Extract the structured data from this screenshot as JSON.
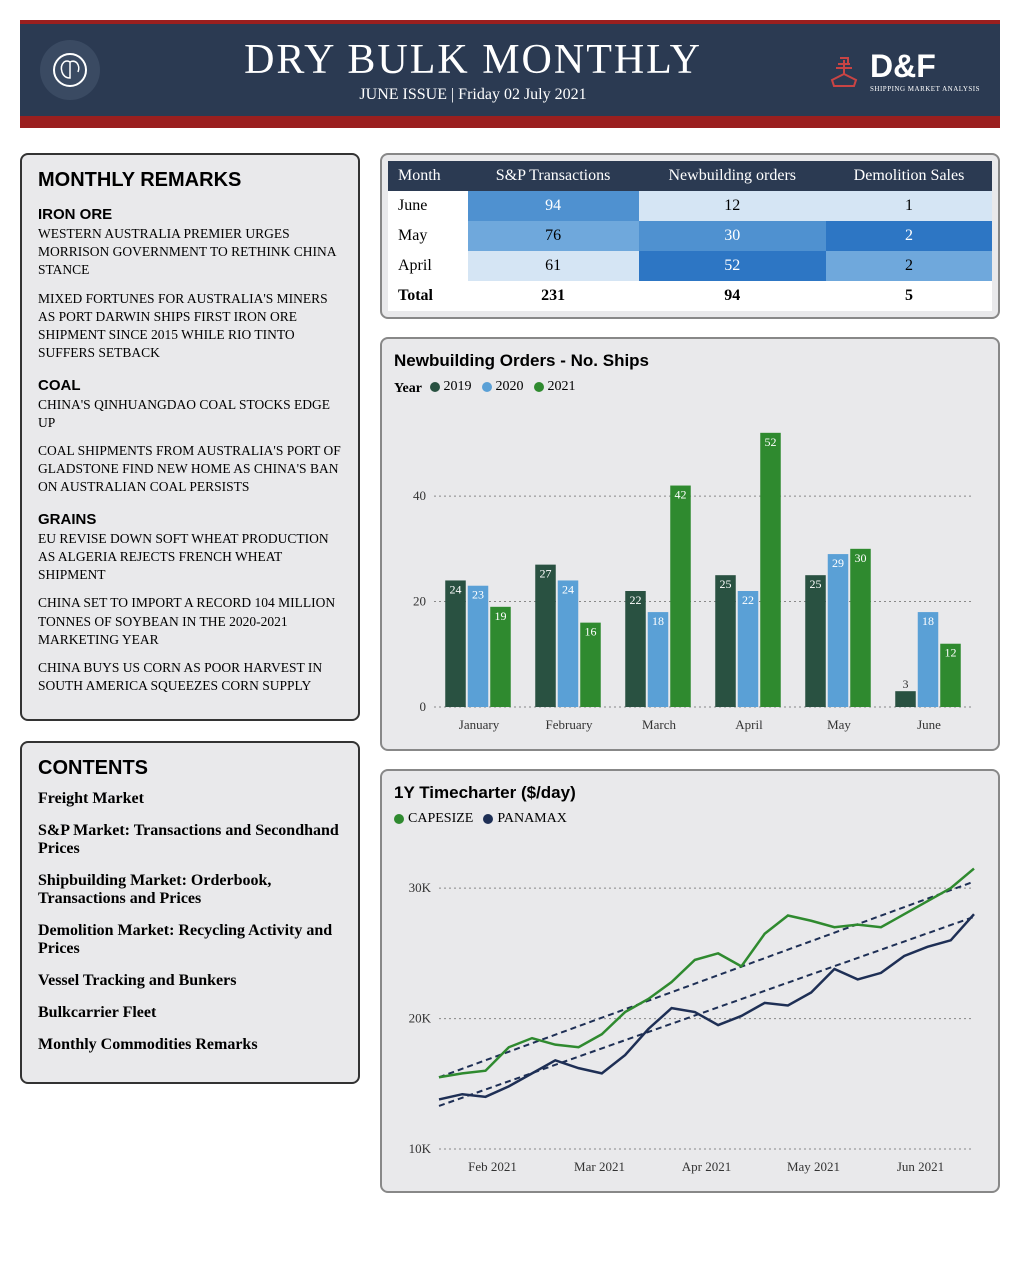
{
  "header": {
    "title": "DRY BULK MONTHLY",
    "subtitle": "JUNE ISSUE | Friday 02 July 2021",
    "logo_text": "D&F",
    "logo_sub": "SHIPPING MARKET ANALYSIS"
  },
  "remarks": {
    "title": "MONTHLY REMARKS",
    "sections": [
      {
        "head": "IRON ORE",
        "paras": [
          "Western Australia Premier urges Morrison government to rethink China stance",
          "Mixed fortunes for Australia's miners as Port Darwin ships first iron ore shipment since 2015 while Rio Tinto suffers setback"
        ]
      },
      {
        "head": "COAL",
        "paras": [
          "China's Qinhuangdao coal stocks edge up",
          "Coal shipments from Australia's Port of Gladstone find new home as China's ban on Australian coal persists"
        ]
      },
      {
        "head": "GRAINS",
        "paras": [
          "EU revise down soft wheat production as Algeria rejects French wheat shipment",
          "China set to import a record 104 million tonnes of soybean in the 2020-2021 marketing year",
          "China buys US corn as poor harvest in South America squeezes corn supply"
        ]
      }
    ]
  },
  "contents": {
    "title": "CONTENTS",
    "items": [
      "Freight Market",
      "S&P Market: Transactions and Secondhand Prices",
      "Shipbuilding Market: Orderbook, Transactions and Prices",
      "Demolition Market: Recycling Activity and Prices",
      "Vessel Tracking and Bunkers",
      "Bulkcarrier Fleet",
      "Monthly Commodities Remarks"
    ]
  },
  "table": {
    "columns": [
      "Month",
      "S&P Transactions",
      "Newbuilding orders",
      "Demolition Sales"
    ],
    "rows": [
      {
        "cells": [
          "June",
          "94",
          "12",
          "1"
        ],
        "colors": [
          "#ffffff",
          "#4f91d0",
          "#d5e5f4",
          "#d5e5f4"
        ]
      },
      {
        "cells": [
          "May",
          "76",
          "30",
          "2"
        ],
        "colors": [
          "#ffffff",
          "#6fa8dc",
          "#4f91d0",
          "#2d76c4"
        ]
      },
      {
        "cells": [
          "April",
          "61",
          "52",
          "2"
        ],
        "colors": [
          "#ffffff",
          "#d5e5f4",
          "#2d76c4",
          "#6fa8dc"
        ]
      }
    ],
    "total": [
      "Total",
      "231",
      "94",
      "5"
    ]
  },
  "bar_chart": {
    "title": "Newbuilding Orders - No. Ships",
    "legend_label": "Year",
    "series": [
      {
        "name": "2019",
        "color": "#295141"
      },
      {
        "name": "2020",
        "color": "#5aa0d6"
      },
      {
        "name": "2021",
        "color": "#2f8a2f"
      }
    ],
    "categories": [
      "January",
      "February",
      "March",
      "April",
      "May",
      "June"
    ],
    "values": [
      [
        24,
        23,
        19
      ],
      [
        27,
        24,
        16
      ],
      [
        22,
        18,
        42
      ],
      [
        25,
        22,
        52
      ],
      [
        25,
        29,
        30
      ],
      [
        3,
        18,
        12
      ]
    ],
    "y_max": 55,
    "y_ticks": [
      0,
      20,
      40
    ],
    "grid_color": "#888888",
    "background": "#e9e9eb",
    "bar_group_width": 0.75
  },
  "line_chart": {
    "title": "1Y Timecharter ($/day)",
    "series": [
      {
        "name": "CAPESIZE",
        "color": "#2f8a2f",
        "dash": false
      },
      {
        "name": "PANAMAX",
        "color": "#1e2f55",
        "dash": false
      }
    ],
    "x_labels": [
      "Feb 2021",
      "Mar 2021",
      "Apr 2021",
      "May 2021",
      "Jun 2021"
    ],
    "y_ticks": [
      10000,
      20000,
      30000
    ],
    "y_tick_labels": [
      "10K",
      "20K",
      "30K"
    ],
    "y_min": 10000,
    "y_max": 33000,
    "capesize": [
      15500,
      15800,
      16000,
      17800,
      18500,
      18000,
      17800,
      18800,
      20500,
      21500,
      22800,
      24500,
      25000,
      24000,
      26500,
      27900,
      27500,
      27000,
      27200,
      27000,
      28000,
      29000,
      30000,
      31500
    ],
    "panamax": [
      13800,
      14200,
      14000,
      14800,
      15800,
      16800,
      16200,
      15800,
      17200,
      19200,
      20800,
      20500,
      19500,
      20200,
      21200,
      21000,
      22000,
      23800,
      23000,
      23500,
      24800,
      25500,
      26000,
      28000
    ],
    "trend_capesize": [
      15500,
      30500
    ],
    "trend_panamax": [
      13300,
      27800
    ],
    "grid_color": "#888888"
  }
}
